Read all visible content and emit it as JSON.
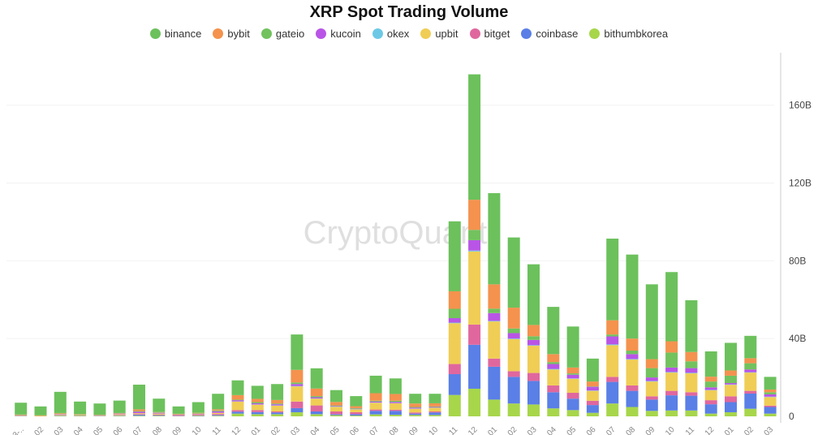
{
  "chart_data": {
    "type": "bar",
    "stacked": true,
    "title": "XRP Spot Trading Volume",
    "watermark": "CryptoQuant",
    "y_axis_position": "right",
    "ylim": [
      0,
      187
    ],
    "yticks": [
      0,
      40,
      80,
      120,
      160
    ],
    "ytick_labels": [
      "0",
      "40B",
      "80B",
      "120B",
      "160B"
    ],
    "unit": "B",
    "grid": true,
    "legend_position": "top",
    "categories": [
      "23-..",
      "02",
      "03",
      "04",
      "05",
      "06",
      "07",
      "08",
      "09",
      "10",
      "11",
      "12",
      "01",
      "02",
      "03",
      "04",
      "05",
      "06",
      "07",
      "08",
      "09",
      "10",
      "11",
      "12",
      "01",
      "02",
      "03",
      "04",
      "05",
      "06",
      "07",
      "08",
      "09",
      "10",
      "11",
      "12",
      "01",
      "02",
      "03"
    ],
    "series": [
      {
        "name": "binance",
        "color": "#6cc15c",
        "values": [
          6.1,
          4.6,
          10.9,
          6.5,
          5.8,
          6.4,
          12.7,
          6.9,
          3.8,
          5.5,
          8,
          7.6,
          6.7,
          8.2,
          18.2,
          10.4,
          6.1,
          5.2,
          9.0,
          8.0,
          5.0,
          4.9,
          36,
          64.5,
          46.9,
          36.1,
          31.2,
          24.3,
          21.1,
          11.8,
          42,
          43.2,
          38.5,
          35.6,
          26.6,
          13,
          14.2,
          11.5,
          6.5
        ]
      },
      {
        "name": "bybit",
        "color": "#f4924e",
        "values": [
          0.3,
          0.3,
          0.3,
          0.2,
          0.2,
          0.2,
          0.9,
          0.2,
          0.3,
          0.3,
          0.6,
          2.3,
          1.7,
          1.8,
          6.5,
          3.9,
          1.8,
          1.0,
          3.9,
          3.5,
          1.8,
          1.6,
          9,
          15.5,
          12.5,
          10.7,
          5.8,
          4.1,
          3,
          2.5,
          7.3,
          6.2,
          4.6,
          5.8,
          4.8,
          2.5,
          2.7,
          2.6,
          1.4
        ]
      },
      {
        "name": "gateio",
        "color": "#72c25e",
        "values": [
          0.1,
          0,
          0.2,
          0.2,
          0.1,
          0.1,
          0.3,
          0.2,
          0.1,
          0.2,
          0.4,
          0.3,
          0.6,
          0.4,
          0.8,
          0.6,
          0.3,
          0.3,
          0.4,
          0.6,
          0.3,
          0.3,
          4.8,
          5.3,
          2.3,
          2.4,
          1.9,
          1,
          0.7,
          0.2,
          1,
          1.8,
          4.8,
          7.7,
          3.5,
          3,
          3.8,
          3.2,
          1.1
        ]
      },
      {
        "name": "kucoin",
        "color": "#b955e6",
        "values": [
          0.1,
          0,
          0.2,
          0.1,
          0.1,
          0.3,
          0.8,
          0.4,
          0.3,
          0.3,
          0.8,
          0.6,
          0.6,
          0.6,
          1.0,
          0.6,
          0.3,
          0.2,
          0.5,
          0.6,
          0.5,
          0.3,
          2.3,
          5.3,
          4,
          2.8,
          2.7,
          2.5,
          1.9,
          1.9,
          4.1,
          2.5,
          1.8,
          2.3,
          2.4,
          1.3,
          0.7,
          1.4,
          1.2
        ]
      },
      {
        "name": "okex",
        "color": "#6cc9e6",
        "values": [
          0,
          0,
          0,
          0,
          0,
          0,
          0,
          0,
          0,
          0,
          0,
          0.1,
          0.1,
          0.1,
          0.2,
          0.1,
          0.1,
          0.1,
          0.1,
          0.1,
          0.1,
          0.1,
          0.3,
          0.5,
          0.3,
          0.3,
          0.3,
          0.3,
          0.2,
          0.2,
          0.4,
          0.3,
          0.3,
          0.3,
          0.3,
          0.2,
          0.2,
          0.2,
          0.2
        ]
      },
      {
        "name": "upbit",
        "color": "#f0cd55",
        "values": [
          0.1,
          0.1,
          0.3,
          0.2,
          0.1,
          0.4,
          0.5,
          0.5,
          0.2,
          0.3,
          0.6,
          4.4,
          2.8,
          3.0,
          7.8,
          3.5,
          2.4,
          1.5,
          3.5,
          3.3,
          1.9,
          1.9,
          21,
          37.6,
          19.1,
          16.5,
          14,
          8.2,
          7.2,
          5.1,
          16.3,
          13.3,
          7.6,
          9.4,
          9.7,
          5.1,
          5.9,
          9.4,
          4.4
        ]
      },
      {
        "name": "bitget",
        "color": "#e0679e",
        "values": [
          0.1,
          0,
          0.2,
          0.1,
          0.1,
          0.2,
          0.3,
          0.3,
          0.2,
          0.3,
          0.5,
          0.8,
          1.0,
          0.5,
          3.4,
          3.1,
          1.4,
          1.0,
          0.7,
          0.6,
          0.6,
          0.5,
          5.2,
          10.4,
          4.2,
          2.9,
          4.1,
          3.5,
          3,
          2.2,
          2.6,
          2.8,
          1.7,
          2.3,
          1.8,
          2.1,
          3,
          1.4,
          0.7
        ]
      },
      {
        "name": "coinbase",
        "color": "#5a7fe6",
        "values": [
          0.1,
          0,
          0.2,
          0.1,
          0.1,
          0.2,
          0.5,
          0.3,
          0.1,
          0.2,
          0.4,
          1.0,
          1.1,
          0.9,
          2.1,
          1.4,
          0.5,
          0.7,
          1.8,
          2.0,
          0.7,
          1.3,
          10.7,
          22.6,
          16.9,
          13.7,
          12.1,
          8.3,
          5.9,
          4,
          11.1,
          8.3,
          5.8,
          7.8,
          7.6,
          4.8,
          5.2,
          7.8,
          3.4
        ]
      },
      {
        "name": "bithumbkorea",
        "color": "#a7d64b",
        "values": [
          0.1,
          0.1,
          0.3,
          0.2,
          0.1,
          0.3,
          0.3,
          0.3,
          0.1,
          0.2,
          0.3,
          1.4,
          1.1,
          1.1,
          2.1,
          1.1,
          0.6,
          0.4,
          1.0,
          0.8,
          0.7,
          0.7,
          11,
          14.2,
          8.6,
          6.6,
          6.1,
          4.1,
          3.2,
          1.8,
          6.6,
          4.8,
          2.8,
          3,
          3,
          1.4,
          2.1,
          3.9,
          1.4
        ]
      }
    ]
  }
}
